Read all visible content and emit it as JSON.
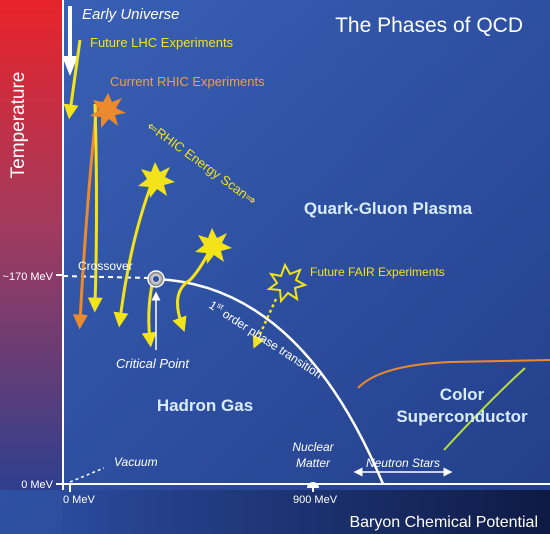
{
  "title": "The Phases of QCD",
  "axes": {
    "x_label": "Baryon Chemical Potential",
    "y_label": "Temperature",
    "x_ticks": [
      "0 MeV",
      "900 MeV"
    ],
    "y_ticks": [
      "~170 MeV",
      "0 MeV"
    ]
  },
  "regions": {
    "qgp": "Quark-Gluon Plasma",
    "hadron": "Hadron Gas",
    "color_sc_line1": "Color",
    "color_sc_line2": "Superconductor"
  },
  "annotations": {
    "early_universe": "Early Universe",
    "lhc": "Future LHC Experiments",
    "rhic": "Current RHIC Experiments",
    "energy_scan": "⇐RHIC Energy Scan⇒",
    "fair": "Future FAIR Experiments",
    "crossover": "Crossover",
    "critical_point": "Critical Point",
    "transition_sup": "st",
    "transition_num": "1",
    "transition_rest": " order phase transition",
    "vacuum": "Vacuum",
    "nuclear_line1": "Nuclear",
    "nuclear_line2": "Matter",
    "neutron_stars": "Neutron Stars"
  },
  "colors": {
    "background": "#2e4f9e",
    "accent_yellow": "#f2e31a",
    "accent_orange": "#ea8a2c",
    "label_yellow": "#f2e31a",
    "label_orange": "#f0a040",
    "text_white": "#ffffff",
    "region_text": "#d8ecff"
  }
}
